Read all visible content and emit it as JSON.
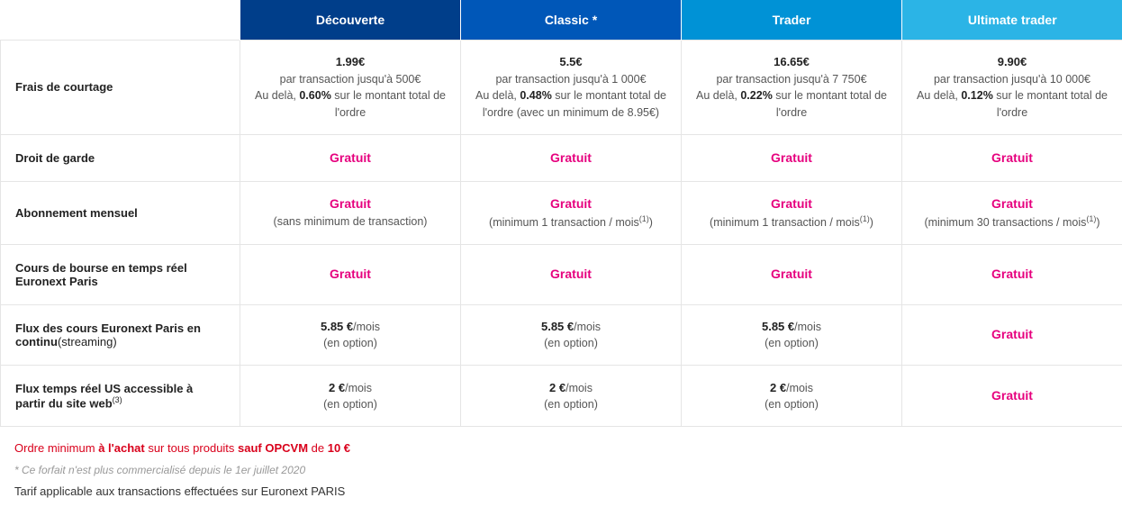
{
  "plans": [
    {
      "name": "Découverte"
    },
    {
      "name": "Classic *"
    },
    {
      "name": "Trader"
    },
    {
      "name": "Ultimate trader"
    }
  ],
  "rows": {
    "frais": {
      "label": "Frais de courtage",
      "cells": [
        {
          "price": "1.99€",
          "l1": "par transaction jusqu'à 500€",
          "l2a": "Au delà, ",
          "rate": "0.60%",
          "l2b": " sur le montant total de l'ordre"
        },
        {
          "price": "5.5€",
          "l1": "par transaction jusqu'à 1 000€",
          "l2a": "Au delà, ",
          "rate": "0.48%",
          "l2b": " sur le montant total de l'ordre (avec un minimum de 8.95€)"
        },
        {
          "price": "16.65€",
          "l1": "par transaction jusqu'à 7 750€",
          "l2a": "Au delà, ",
          "rate": "0.22%",
          "l2b": " sur le montant total de l'ordre"
        },
        {
          "price": "9.90€",
          "l1": "par transaction jusqu'à 10 000€",
          "l2a": "Au delà, ",
          "rate": "0.12%",
          "l2b": " sur le montant total de l'ordre"
        }
      ]
    },
    "garde": {
      "label": "Droit de garde",
      "gratuit": "Gratuit"
    },
    "abo": {
      "label": "Abonnement mensuel",
      "gratuit": "Gratuit",
      "subs": [
        "(sans minimum de transaction)",
        "(minimum 1 transaction / mois",
        "(minimum 1 transaction / mois",
        "(minimum 30 transactions / mois"
      ],
      "sup": "(1)",
      "closep": ")"
    },
    "cours": {
      "label_a": "Cours de bourse en temps réel Euronext Paris",
      "gratuit": "Gratuit"
    },
    "flux_eu": {
      "label_a": "Flux des cours Euronext Paris en continu",
      "label_b": "(streaming)",
      "price": "5.85 €",
      "unit": "/mois",
      "opt": "(en option)",
      "gratuit": "Gratuit"
    },
    "flux_us": {
      "label_a": "Flux temps réel US accessible à partir du site web",
      "sup": "(3)",
      "price": "2 €",
      "unit": "/mois",
      "opt": "(en option)",
      "gratuit": "Gratuit"
    }
  },
  "footnotes": {
    "red_a": "Ordre minimum ",
    "red_b": "à l'achat",
    "red_c": " sur tous produits ",
    "red_d": "sauf OPCVM",
    "red_e": " de ",
    "red_f": "10 €",
    "grey": "* Ce forfait n'est plus commercialisé depuis le 1er juillet 2020",
    "dark": "Tarif applicable aux transactions effectuées sur Euronext PARIS"
  }
}
